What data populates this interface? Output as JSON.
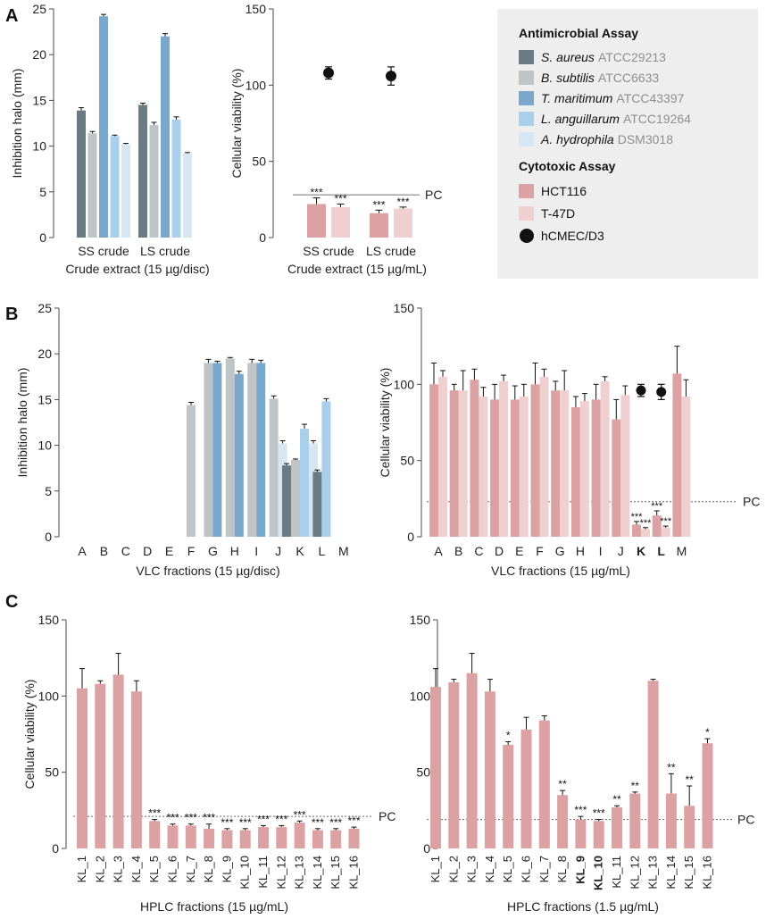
{
  "colors": {
    "ss": "#6b7b84",
    "bs": "#bfc4c6",
    "tm": "#79a8cc",
    "la": "#a8d0ec",
    "ah": "#d6e6f3",
    "hct": "#dca1a3",
    "t47": "#f0cfd1",
    "hcmec": "#111111",
    "legend_bg": "#eeeeee"
  },
  "panel_labels": {
    "a": "A",
    "b": "B",
    "c": "C"
  },
  "legend": {
    "antimicrobial_title": "Antimicrobial Assay",
    "cytotoxic_title": "Cytotoxic Assay",
    "antimicrobial": [
      {
        "key": "ss",
        "species": "S. aureus",
        "strain": "ATCC29213"
      },
      {
        "key": "bs",
        "species": "B. subtilis",
        "strain": "ATCC6633"
      },
      {
        "key": "tm",
        "species": "T. maritimum",
        "strain": "ATCC43397"
      },
      {
        "key": "la",
        "species": "L. anguillarum",
        "strain": "ATCC19264"
      },
      {
        "key": "ah",
        "species": "A. hydrophila",
        "strain": "DSM3018"
      }
    ],
    "cytotoxic": [
      {
        "key": "hct",
        "label": "HCT116",
        "marker": "square"
      },
      {
        "key": "t47",
        "label": "T-47D",
        "marker": "square"
      },
      {
        "key": "hcmec",
        "label": "hCMEC/D3",
        "marker": "circle"
      }
    ]
  },
  "chart_data": [
    {
      "id": "A1",
      "type": "bar",
      "title": "",
      "xlabel": "Crude extract (15 µg/disc)",
      "ylabel": "Inhibition halo (mm)",
      "ylim": [
        0,
        25
      ],
      "yticks": [
        0,
        5,
        10,
        15,
        20,
        25
      ],
      "categories": [
        "SS crude",
        "LS crude"
      ],
      "series": [
        {
          "name": "S. aureus",
          "color_key": "ss",
          "values": [
            13.9,
            14.5
          ],
          "errors": [
            0.3,
            0.2
          ]
        },
        {
          "name": "B. subtilis",
          "color_key": "bs",
          "values": [
            11.4,
            12.3
          ],
          "errors": [
            0.2,
            0.3
          ]
        },
        {
          "name": "T. maritimum",
          "color_key": "tm",
          "values": [
            24.2,
            22.0
          ],
          "errors": [
            0.2,
            0.3
          ]
        },
        {
          "name": "L. anguillarum",
          "color_key": "la",
          "values": [
            11.1,
            12.9
          ],
          "errors": [
            0.1,
            0.3
          ]
        },
        {
          "name": "A. hydrophila",
          "color_key": "ah",
          "values": [
            10.2,
            9.2
          ],
          "errors": [
            0.1,
            0.1
          ]
        }
      ]
    },
    {
      "id": "A2",
      "type": "bar",
      "title": "",
      "xlabel": "Crude extract (15 µg/mL)",
      "ylabel": "Cellular viability (%)",
      "ylim": [
        0,
        150
      ],
      "yticks": [
        0,
        50,
        100,
        150
      ],
      "categories": [
        "SS crude",
        "LS crude"
      ],
      "pc_line": {
        "value": 28,
        "label": "PC",
        "style": "solid"
      },
      "series": [
        {
          "name": "HCT116",
          "color_key": "hct",
          "values": [
            22,
            16
          ],
          "errors": [
            4,
            2
          ],
          "sig": [
            "***",
            "***"
          ]
        },
        {
          "name": "T-47D",
          "color_key": "t47",
          "values": [
            20,
            19
          ],
          "errors": [
            2,
            1
          ],
          "sig": [
            "***",
            "***"
          ]
        }
      ],
      "points": {
        "name": "hCMEC/D3",
        "color_key": "hcmec",
        "values": [
          108,
          106
        ],
        "errors": [
          4,
          6
        ]
      }
    },
    {
      "id": "B1",
      "type": "bar",
      "title": "",
      "xlabel": "VLC fractions (15 µg/disc)",
      "ylabel": "Inhibition halo (mm)",
      "ylim": [
        0,
        25
      ],
      "yticks": [
        0,
        5,
        10,
        15,
        20,
        25
      ],
      "categories": [
        "A",
        "B",
        "C",
        "D",
        "E",
        "F",
        "G",
        "H",
        "I",
        "J",
        "K",
        "L",
        "M"
      ],
      "bars": [
        {
          "cat": "F",
          "color_key": "bs",
          "value": 14.4,
          "error": 0.3
        },
        {
          "cat": "G",
          "color_key": "bs",
          "value": 19.0,
          "error": 0.4
        },
        {
          "cat": "G",
          "color_key": "tm",
          "value": 19.0,
          "error": 0.2
        },
        {
          "cat": "H",
          "color_key": "bs",
          "value": 19.5,
          "error": 0.1
        },
        {
          "cat": "H",
          "color_key": "tm",
          "value": 17.8,
          "error": 0.3
        },
        {
          "cat": "I",
          "color_key": "bs",
          "value": 19.0,
          "error": 0.4
        },
        {
          "cat": "I",
          "color_key": "tm",
          "value": 19.0,
          "error": 0.3
        },
        {
          "cat": "J",
          "color_key": "bs",
          "value": 15.1,
          "error": 0.3
        },
        {
          "cat": "J",
          "color_key": "ah",
          "value": 10.2,
          "error": 0.3
        },
        {
          "cat": "K",
          "color_key": "ss",
          "value": 7.8,
          "error": 0.2
        },
        {
          "cat": "K",
          "color_key": "bs",
          "value": 8.4,
          "error": 0.1
        },
        {
          "cat": "K",
          "color_key": "la",
          "value": 11.8,
          "error": 0.5
        },
        {
          "cat": "K",
          "color_key": "ah",
          "value": 10.2,
          "error": 0.3
        },
        {
          "cat": "L",
          "color_key": "ss",
          "value": 7.1,
          "error": 0.2
        },
        {
          "cat": "L",
          "color_key": "la",
          "value": 14.8,
          "error": 0.3
        }
      ]
    },
    {
      "id": "B2",
      "type": "bar",
      "title": "",
      "xlabel": "VLC fractions (15 µg/mL)",
      "ylabel": "Cellular viability (%)",
      "ylim": [
        0,
        150
      ],
      "yticks": [
        0,
        50,
        100,
        150
      ],
      "categories": [
        "A",
        "B",
        "C",
        "D",
        "E",
        "F",
        "G",
        "H",
        "I",
        "J",
        "K",
        "L",
        "M"
      ],
      "bold_categories": [
        "K",
        "L"
      ],
      "pc_line": {
        "value": 23,
        "label": "PC",
        "style": "dotted"
      },
      "series": [
        {
          "name": "HCT116",
          "color_key": "hct",
          "values": [
            100,
            96,
            103,
            90,
            90,
            100,
            96,
            85,
            90,
            77,
            8,
            14,
            107
          ],
          "errors": [
            14,
            4,
            7,
            10,
            9,
            14,
            6,
            7,
            10,
            13,
            2,
            3,
            18
          ],
          "sig": [
            "",
            "",
            "",
            "",
            "",
            "",
            "",
            "",
            "",
            "",
            "***",
            "***",
            ""
          ]
        },
        {
          "name": "T-47D",
          "color_key": "t47",
          "values": [
            105,
            96,
            92,
            102,
            92,
            105,
            96,
            89,
            102,
            93,
            5,
            6,
            92
          ],
          "errors": [
            4,
            13,
            6,
            4,
            8,
            5,
            13,
            5,
            3,
            6,
            1,
            1,
            11
          ],
          "sig": [
            "",
            "",
            "",
            "",
            "",
            "",
            "",
            "",
            "",
            "",
            "***",
            "***",
            ""
          ]
        }
      ],
      "points": {
        "name": "hCMEC/D3",
        "categories": [
          "K",
          "L"
        ],
        "values": [
          96,
          95
        ],
        "errors": [
          4,
          5
        ]
      }
    },
    {
      "id": "C1",
      "type": "bar",
      "title": "",
      "xlabel": "HPLC fractions (15 µg/mL)",
      "ylabel": "Cellular viability (%)",
      "ylim": [
        0,
        150
      ],
      "yticks": [
        0,
        50,
        100,
        150
      ],
      "categories": [
        "KL_1",
        "KL_2",
        "KL_3",
        "KL_4",
        "KL_5",
        "KL_6",
        "KL_7",
        "KL_8",
        "KL_9",
        "KL_10",
        "KL_11",
        "KL_12",
        "KL_13",
        "KL_14",
        "KL_15",
        "KL_16"
      ],
      "pc_line": {
        "value": 21,
        "label": "PC",
        "style": "dotted"
      },
      "series": [
        {
          "name": "HCT116",
          "color_key": "hct",
          "values": [
            105,
            108,
            114,
            103,
            18,
            15,
            15,
            13,
            12,
            12,
            14,
            14,
            17,
            12,
            12,
            13
          ],
          "errors": [
            13,
            2,
            14,
            7,
            1,
            1,
            1,
            3,
            1,
            1,
            1,
            1,
            1,
            1,
            1,
            1
          ],
          "sig": [
            "",
            "",
            "",
            "",
            "***",
            "***",
            "***",
            "***",
            "***",
            "***",
            "***",
            "***",
            "***",
            "***",
            "***",
            "***"
          ]
        }
      ]
    },
    {
      "id": "C2",
      "type": "bar",
      "title": "",
      "xlabel": "HPLC fractions (1.5 µg/mL)",
      "ylabel": "",
      "ylim": [
        0,
        150
      ],
      "yticks": [
        0,
        50,
        100,
        150
      ],
      "categories": [
        "KL_1",
        "KL_2",
        "KL_3",
        "KL_4",
        "KL_5",
        "KL_6",
        "KL_7",
        "KL_8",
        "KL_9",
        "KL_10",
        "KL_11",
        "KL_12",
        "KL_13",
        "KL_14",
        "KL_15",
        "KL_16"
      ],
      "bold_categories": [
        "KL_9",
        "KL_10"
      ],
      "pc_line": {
        "value": 19,
        "label": "PC",
        "style": "dotted"
      },
      "series": [
        {
          "name": "HCT116",
          "color_key": "hct",
          "values": [
            106,
            109,
            115,
            103,
            68,
            78,
            84,
            35,
            19,
            18,
            27,
            36,
            110,
            36,
            28,
            69
          ],
          "errors": [
            12,
            2,
            13,
            8,
            2,
            8,
            3,
            3,
            2,
            1,
            1,
            1,
            1,
            13,
            13,
            3
          ],
          "sig": [
            "",
            "",
            "",
            "",
            "*",
            "",
            "",
            "**",
            "***",
            "***",
            "**",
            "**",
            "",
            "**",
            "**",
            "*"
          ]
        }
      ]
    }
  ]
}
